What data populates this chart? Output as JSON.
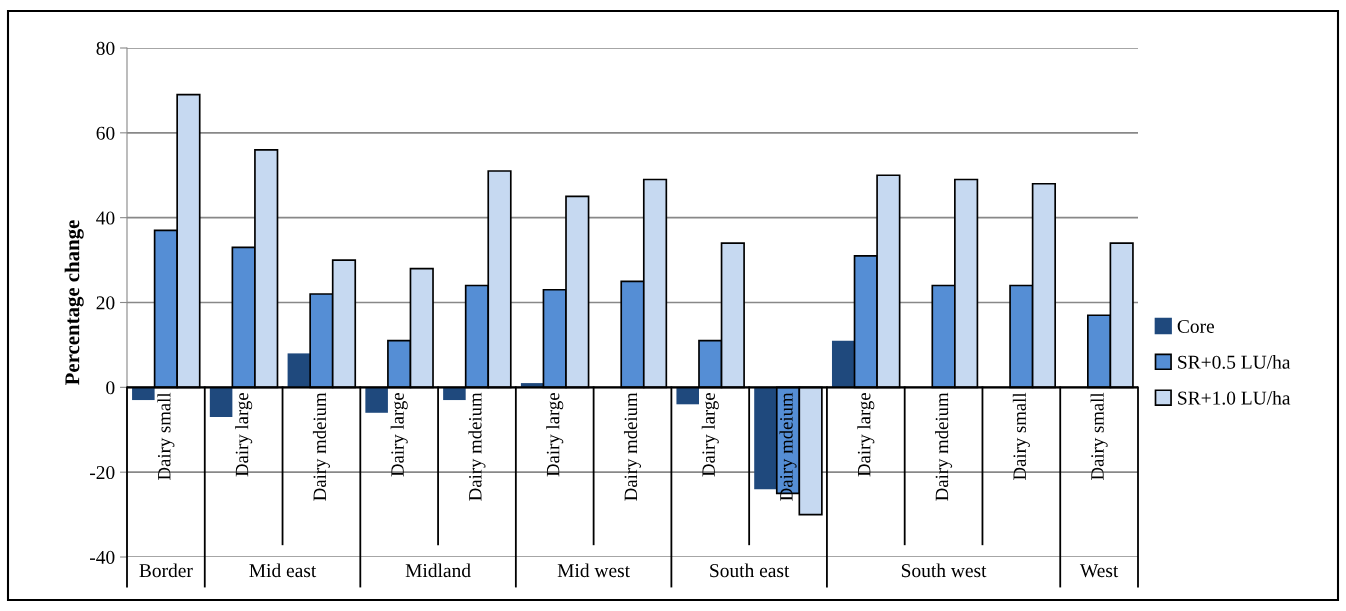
{
  "chart_data": {
    "type": "bar",
    "ylabel": "Percentage change",
    "categories": [
      "Dairy small",
      "Dairy large",
      "Dairy mdeium",
      "Dairy large",
      "Dairy mdeium",
      "Dairy large",
      "Dairy mdeium",
      "Dairy large",
      "Dairy mdeium",
      "Dairy large",
      "Dairy mdeium",
      "Dairy small",
      "Dairy small"
    ],
    "series": [
      {
        "name": "Core",
        "color": "#1f497d",
        "values": [
          -3,
          -7,
          8,
          -6,
          -3,
          1,
          null,
          -4,
          -24,
          11,
          null,
          null,
          null
        ]
      },
      {
        "name": "SR+0.5 LU/ha",
        "color": "#558ed5",
        "values": [
          37,
          33,
          22,
          11,
          24,
          23,
          25,
          11,
          -25,
          31,
          24,
          24,
          17
        ]
      },
      {
        "name": "SR+1.0 LU/ha",
        "color": "#c6d9f1",
        "values": [
          69,
          56,
          30,
          28,
          51,
          45,
          49,
          34,
          -30,
          50,
          49,
          48,
          34
        ]
      }
    ],
    "annotations": [
      "Border",
      "Mid east",
      "Midland",
      "Mid west",
      "South east",
      "South west",
      "West"
    ],
    "ylim": [
      -40,
      80
    ],
    "yticks": [
      -40,
      -20,
      0,
      20,
      40,
      60,
      80
    ],
    "grid": "y",
    "legend": "right"
  }
}
